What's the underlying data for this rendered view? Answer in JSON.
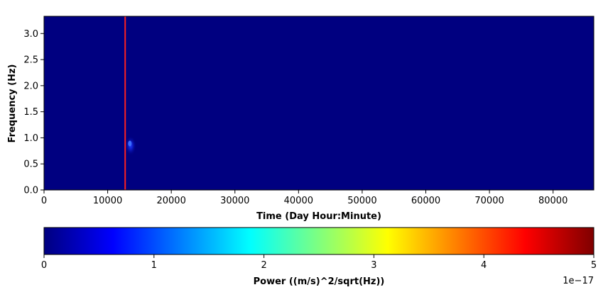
{
  "chart_data": [
    {
      "type": "heatmap",
      "xlabel": "Time (Day Hour:Minute)",
      "ylabel": "Frequency (Hz)",
      "xlim": [
        0,
        86400
      ],
      "ylim": [
        0,
        3.33
      ],
      "x_ticks": [
        0,
        10000,
        20000,
        30000,
        40000,
        50000,
        60000,
        70000,
        80000
      ],
      "x_tick_labels": [
        "0",
        "10000",
        "20000",
        "30000",
        "40000",
        "50000",
        "60000",
        "70000",
        "80000"
      ],
      "y_ticks": [
        0.0,
        0.5,
        1.0,
        1.5,
        2.0,
        2.5,
        3.0
      ],
      "y_tick_labels": [
        "0.0",
        "0.5",
        "1.0",
        "1.5",
        "2.0",
        "2.5",
        "3.0"
      ],
      "background_value": 0,
      "hotspot": {
        "time": 13600,
        "frequency": 0.85,
        "power": 5e-18
      },
      "marker_line": {
        "time": 12750,
        "color": "#ff2020"
      },
      "colormap": "jet"
    },
    {
      "type": "colorbar",
      "label": "Power ((m/s)^2/sqrt(Hz))",
      "range": [
        0,
        5
      ],
      "ticks": [
        0,
        1,
        2,
        3,
        4,
        5
      ],
      "tick_labels": [
        "0",
        "1",
        "2",
        "3",
        "4",
        "5"
      ],
      "scale_label": "1e−17",
      "colormap_stops": [
        "#00007f",
        "#0000ff",
        "#007fff",
        "#00ffff",
        "#7fff7f",
        "#ffff00",
        "#ff7f00",
        "#ff0000",
        "#7f0000"
      ]
    }
  ]
}
